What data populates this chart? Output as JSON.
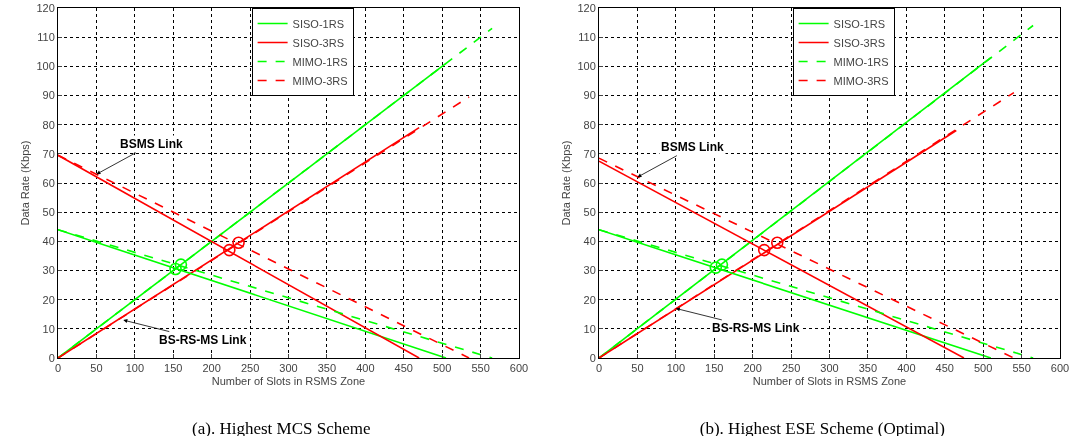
{
  "chart_data": [
    {
      "type": "line",
      "title": "(a). Highest MCS Scheme",
      "xlabel": "Number of Slots in RSMS Zone",
      "ylabel": "Data Rate (Kbps)",
      "xlim": [
        0,
        600
      ],
      "ylim": [
        0,
        120
      ],
      "xticks": [
        0,
        50,
        100,
        150,
        200,
        250,
        300,
        350,
        400,
        450,
        500,
        550,
        600
      ],
      "yticks": [
        0,
        10,
        20,
        30,
        40,
        50,
        60,
        70,
        80,
        90,
        100,
        110,
        120
      ],
      "grid": true,
      "legend": "top",
      "marker": "none",
      "annotations": [
        {
          "text": "BSMS Link",
          "x": 50,
          "y": 63
        },
        {
          "text": "BS-RS-MS Link",
          "x": 85,
          "y": 13
        }
      ],
      "series": [
        {
          "name": "SISO-1RS",
          "color": "#00ff00",
          "line_style": "solid",
          "x": [
            0,
            505
          ],
          "values": [
            0,
            101
          ]
        },
        {
          "name": "SISO-3RS",
          "color": "#ff0000",
          "line_style": "solid",
          "x": [
            0,
            470
          ],
          "values": [
            0,
            79
          ]
        },
        {
          "name": "MIMO-1RS",
          "color": "#00ff00",
          "line_style": "dashed",
          "x": [
            0,
            565
          ],
          "values": [
            0,
            113
          ]
        },
        {
          "name": "MIMO-3RS",
          "color": "#ff0000",
          "line_style": "dashed",
          "x": [
            0,
            535
          ],
          "values": [
            0,
            89.5
          ]
        },
        {
          "color": "#00ff00",
          "line_style": "solid",
          "x": [
            0,
            505
          ],
          "values": [
            44,
            0
          ]
        },
        {
          "color": "#ff0000",
          "line_style": "solid",
          "x": [
            0,
            470
          ],
          "values": [
            69.5,
            0
          ]
        },
        {
          "color": "#00ff00",
          "line_style": "dashed",
          "x": [
            0,
            565
          ],
          "values": [
            44,
            0
          ]
        },
        {
          "color": "#ff0000",
          "line_style": "dashed",
          "x": [
            0,
            535
          ],
          "values": [
            69.5,
            0
          ]
        },
        {
          "type": "scatter",
          "marker": "circle",
          "color": "#00ff00",
          "x": [
            153,
            160
          ],
          "values": [
            30.5,
            32
          ]
        },
        {
          "type": "scatter",
          "marker": "circle",
          "color": "#ff0000",
          "x": [
            223,
            235
          ],
          "values": [
            37,
            39.5
          ]
        }
      ]
    },
    {
      "type": "line",
      "title": "(b). Highest ESE Scheme (Optimal)",
      "xlabel": "Number of Slots in RSMS Zone",
      "ylabel": "Data Rate (Kbps)",
      "xlim": [
        0,
        600
      ],
      "ylim": [
        0,
        120
      ],
      "xticks": [
        0,
        50,
        100,
        150,
        200,
        250,
        300,
        350,
        400,
        450,
        500,
        550,
        600
      ],
      "yticks": [
        0,
        10,
        20,
        30,
        40,
        50,
        60,
        70,
        80,
        90,
        100,
        110,
        120
      ],
      "grid": true,
      "legend": "top",
      "marker": "none",
      "annotations": [
        {
          "text": "BSMS Link",
          "x": 50,
          "y": 62
        },
        {
          "text": "BS-RS-MS Link",
          "x": 100,
          "y": 17
        }
      ],
      "series": [
        {
          "name": "SISO-1RS",
          "color": "#00ff00",
          "line_style": "solid",
          "x": [
            0,
            510
          ],
          "values": [
            0,
            103
          ]
        },
        {
          "name": "SISO-3RS",
          "color": "#ff0000",
          "line_style": "solid",
          "x": [
            0,
            465
          ],
          "values": [
            0,
            78
          ]
        },
        {
          "name": "MIMO-1RS",
          "color": "#00ff00",
          "line_style": "dashed",
          "x": [
            0,
            565
          ],
          "values": [
            0,
            114
          ]
        },
        {
          "name": "MIMO-3RS",
          "color": "#ff0000",
          "line_style": "dashed",
          "x": [
            0,
            540
          ],
          "values": [
            0,
            91
          ]
        },
        {
          "color": "#00ff00",
          "line_style": "solid",
          "x": [
            0,
            510
          ],
          "values": [
            44,
            0
          ]
        },
        {
          "color": "#ff0000",
          "line_style": "solid",
          "x": [
            0,
            475
          ],
          "values": [
            67.5,
            0
          ]
        },
        {
          "color": "#00ff00",
          "line_style": "dashed",
          "x": [
            0,
            565
          ],
          "values": [
            44,
            0
          ]
        },
        {
          "color": "#ff0000",
          "line_style": "dashed",
          "x": [
            0,
            540
          ],
          "values": [
            68.5,
            0
          ]
        },
        {
          "type": "scatter",
          "marker": "circle",
          "color": "#00ff00",
          "x": [
            152,
            160
          ],
          "values": [
            31,
            32
          ]
        },
        {
          "type": "scatter",
          "marker": "circle",
          "color": "#ff0000",
          "x": [
            215,
            232
          ],
          "values": [
            37,
            39.5
          ]
        }
      ]
    }
  ]
}
